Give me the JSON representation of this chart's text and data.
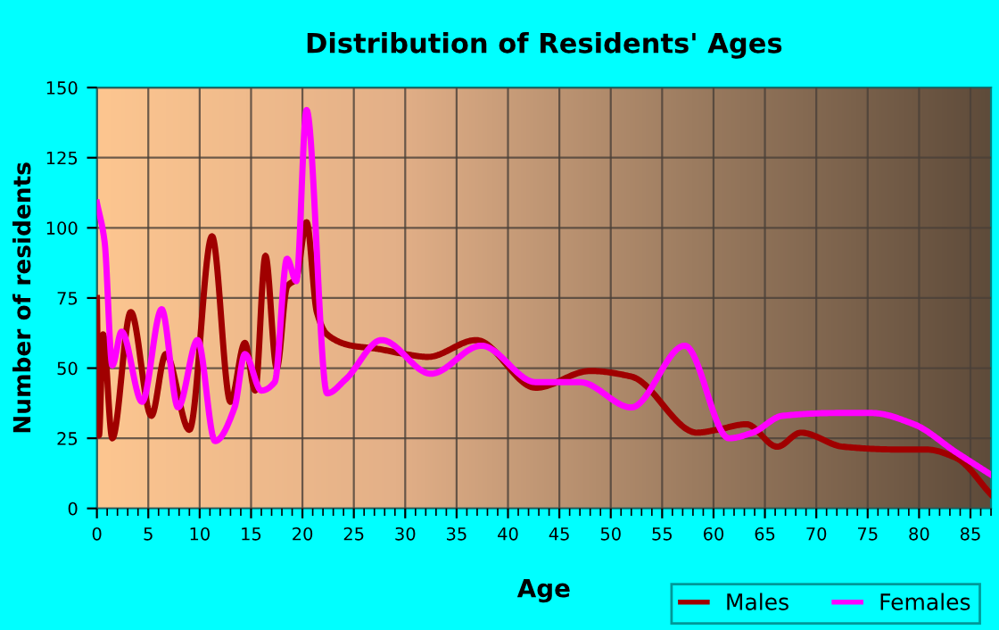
{
  "chart_data": {
    "type": "line",
    "title": "Distribution of Residents' Ages",
    "xlabel": "Age",
    "ylabel": "Number of residents",
    "xlim": [
      0,
      87
    ],
    "xticks": [
      0,
      5,
      10,
      15,
      20,
      25,
      30,
      35,
      40,
      45,
      50,
      55,
      60,
      65,
      70,
      75,
      80,
      85
    ],
    "ylim": [
      0,
      150
    ],
    "yticks": [
      0,
      25,
      50,
      75,
      100,
      125,
      150
    ],
    "grid": true,
    "legend": "bottom right",
    "marker": "none",
    "line_style": "solid",
    "series": [
      {
        "name": "Males",
        "color": "#a00000",
        "x": [
          0,
          0.2,
          0.6,
          1.5,
          3.3,
          5.3,
          6.7,
          9,
          11.2,
          13,
          14.4,
          15.4,
          16.4,
          17.5,
          18.5,
          19.4,
          20.4,
          21.4,
          22.4,
          24.8,
          27.1,
          30,
          32.2,
          36.9,
          42.7,
          48,
          52,
          58.4,
          60.3,
          63.2,
          66.2,
          68.5,
          72.6,
          77.8,
          80.7,
          83.6,
          87
        ],
        "values": [
          75,
          26,
          62,
          25,
          70,
          33,
          55,
          28,
          97,
          38,
          59,
          42,
          90,
          50,
          79,
          82,
          102,
          70,
          62,
          58,
          57,
          55,
          54,
          60,
          43,
          49,
          47,
          27,
          28,
          30,
          22,
          27,
          22,
          21,
          21,
          18,
          5
        ]
      },
      {
        "name": "Females",
        "color": "#ff00ff",
        "x": [
          0,
          0.75,
          1.5,
          2.4,
          4.4,
          6.3,
          7.9,
          9.8,
          11.5,
          13.4,
          14.4,
          16,
          17.3,
          18.5,
          19.4,
          20.4,
          22.4,
          24.2,
          27.7,
          32.5,
          37.4,
          42.7,
          47,
          52,
          57.2,
          61.5,
          63.8,
          66.7,
          71.9,
          75.4,
          79.5,
          83.6,
          87
        ],
        "values": [
          109,
          95,
          51,
          63,
          38,
          71,
          36,
          60,
          24,
          36,
          55,
          42,
          45,
          89,
          81,
          142,
          41,
          46,
          60,
          48,
          58,
          45,
          45,
          36,
          58,
          25,
          27,
          33,
          34,
          34,
          30,
          20,
          12
        ]
      }
    ]
  }
}
